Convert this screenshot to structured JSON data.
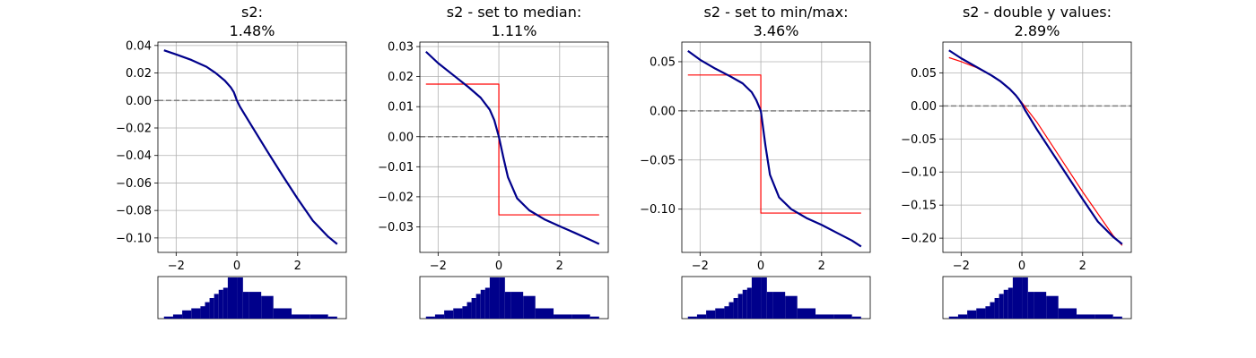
{
  "colors": {
    "curve": "#00008b",
    "step": "#ff0000",
    "zero_line": "#808080",
    "grid": "#b0b0b0",
    "hist": "#00008b",
    "axes": "#000000"
  },
  "chart_data": [
    {
      "type": "line",
      "title": "s2:",
      "subtitle": "1.48%",
      "xlim": [
        -2.6,
        3.6
      ],
      "ylim": [
        -0.1105,
        0.0425
      ],
      "xticks": [
        -2,
        0,
        2
      ],
      "xtick_labels": [
        "−2",
        "0",
        "2"
      ],
      "yticks": [
        0.04,
        0.02,
        0.0,
        -0.02,
        -0.04,
        -0.06,
        -0.08,
        -0.1
      ],
      "ytick_labels": [
        "0.04",
        "0.02",
        "0.00",
        "−0.02",
        "−0.04",
        "−0.06",
        "−0.08",
        "−0.10"
      ],
      "grid": true,
      "zero_line": 0,
      "series": [
        {
          "role": "curve",
          "x": [
            -2.4,
            -2.0,
            -1.5,
            -1.0,
            -0.7,
            -0.4,
            -0.2,
            -0.1,
            0.0,
            0.1,
            0.5,
            1.0,
            1.5,
            2.0,
            2.5,
            3.0,
            3.3
          ],
          "y": [
            0.0365,
            0.0335,
            0.0295,
            0.0245,
            0.02,
            0.0145,
            0.0095,
            0.006,
            0.0,
            -0.0045,
            -0.019,
            -0.037,
            -0.0545,
            -0.0715,
            -0.0875,
            -0.099,
            -0.1045
          ]
        }
      ]
    },
    {
      "type": "line",
      "title": "s2 - set to median:",
      "subtitle": "1.11%",
      "xlim": [
        -2.6,
        3.6
      ],
      "ylim": [
        -0.0385,
        0.0315
      ],
      "xticks": [
        -2,
        0,
        2
      ],
      "xtick_labels": [
        "−2",
        "0",
        "2"
      ],
      "yticks": [
        0.03,
        0.02,
        0.01,
        0.0,
        -0.01,
        -0.02,
        -0.03
      ],
      "ytick_labels": [
        "0.03",
        "0.02",
        "0.01",
        "0.00",
        "−0.01",
        "−0.02",
        "−0.03"
      ],
      "grid": true,
      "zero_line": 0,
      "series": [
        {
          "role": "step",
          "x": [
            -2.4,
            0.0,
            0.0,
            3.3
          ],
          "y": [
            0.0175,
            0.0175,
            -0.026,
            -0.026
          ]
        },
        {
          "role": "curve",
          "x": [
            -2.4,
            -2.0,
            -1.5,
            -1.0,
            -0.6,
            -0.3,
            -0.15,
            0.0,
            0.15,
            0.3,
            0.6,
            1.0,
            1.5,
            2.0,
            2.5,
            3.0,
            3.3
          ],
          "y": [
            0.0283,
            0.0245,
            0.0205,
            0.0165,
            0.013,
            0.009,
            0.0055,
            0.0,
            -0.007,
            -0.0135,
            -0.0205,
            -0.0245,
            -0.0275,
            -0.0298,
            -0.032,
            -0.0343,
            -0.0357
          ]
        }
      ]
    },
    {
      "type": "line",
      "title": "s2 - set to min/max:",
      "subtitle": "3.46%",
      "xlim": [
        -2.6,
        3.6
      ],
      "ylim": [
        -0.144,
        0.07
      ],
      "xticks": [
        -2,
        0,
        2
      ],
      "xtick_labels": [
        "−2",
        "0",
        "2"
      ],
      "yticks": [
        0.05,
        0.0,
        -0.05,
        -0.1
      ],
      "ytick_labels": [
        "0.05",
        "0.00",
        "−0.05",
        "−0.10"
      ],
      "grid": true,
      "zero_line": 0,
      "series": [
        {
          "role": "step",
          "x": [
            -2.4,
            0.0,
            0.0,
            3.3
          ],
          "y": [
            0.0365,
            0.0365,
            -0.104,
            -0.104
          ]
        },
        {
          "role": "curve",
          "x": [
            -2.4,
            -2.0,
            -1.5,
            -1.0,
            -0.6,
            -0.3,
            -0.15,
            0.0,
            0.15,
            0.3,
            0.6,
            1.0,
            1.5,
            2.0,
            2.5,
            3.0,
            3.3
          ],
          "y": [
            0.061,
            0.052,
            0.043,
            0.035,
            0.028,
            0.019,
            0.011,
            0.0,
            -0.035,
            -0.065,
            -0.088,
            -0.1,
            -0.109,
            -0.116,
            -0.124,
            -0.132,
            -0.138
          ]
        }
      ]
    },
    {
      "type": "line",
      "title": "s2 - double y values:",
      "subtitle": "2.89%",
      "xlim": [
        -2.6,
        3.6
      ],
      "ylim": [
        -0.2215,
        0.0965
      ],
      "xticks": [
        -2,
        0,
        2
      ],
      "xtick_labels": [
        "−2",
        "0",
        "2"
      ],
      "yticks": [
        0.05,
        0.0,
        -0.05,
        -0.1,
        -0.15,
        -0.2
      ],
      "ytick_labels": [
        "0.05",
        "0.00",
        "−0.05",
        "−0.10",
        "−0.15",
        "−0.20"
      ],
      "grid": true,
      "zero_line": 0,
      "series": [
        {
          "role": "step",
          "x": [
            -2.4,
            -2.0,
            -1.5,
            -1.0,
            -0.5,
            -0.2,
            0.0,
            0.5,
            1.0,
            1.5,
            2.0,
            2.5,
            3.0,
            3.3
          ],
          "y": [
            0.073,
            0.067,
            0.058,
            0.046,
            0.03,
            0.015,
            0.005,
            -0.025,
            -0.06,
            -0.095,
            -0.13,
            -0.163,
            -0.196,
            -0.211
          ]
        },
        {
          "role": "curve",
          "x": [
            -2.4,
            -2.0,
            -1.5,
            -1.0,
            -0.7,
            -0.4,
            -0.2,
            -0.1,
            0.0,
            0.1,
            0.5,
            1.0,
            1.5,
            2.0,
            2.5,
            3.0,
            3.3
          ],
          "y": [
            0.084,
            0.072,
            0.059,
            0.046,
            0.037,
            0.0255,
            0.016,
            0.01,
            0.003,
            -0.006,
            -0.036,
            -0.071,
            -0.106,
            -0.141,
            -0.175,
            -0.198,
            -0.209
          ]
        }
      ]
    }
  ],
  "histogram": {
    "bins": [
      -2.4,
      -2.1,
      -1.8,
      -1.5,
      -1.2,
      -1.05,
      -0.9,
      -0.75,
      -0.6,
      -0.45,
      -0.3,
      0.0,
      0.2,
      0.4,
      0.8,
      1.2,
      1.8,
      2.4,
      3.0,
      3.3
    ],
    "counts": [
      1,
      2,
      4,
      5,
      6,
      8,
      10,
      12,
      14,
      15,
      20,
      20,
      13,
      13,
      11,
      5,
      2,
      2,
      1
    ]
  }
}
